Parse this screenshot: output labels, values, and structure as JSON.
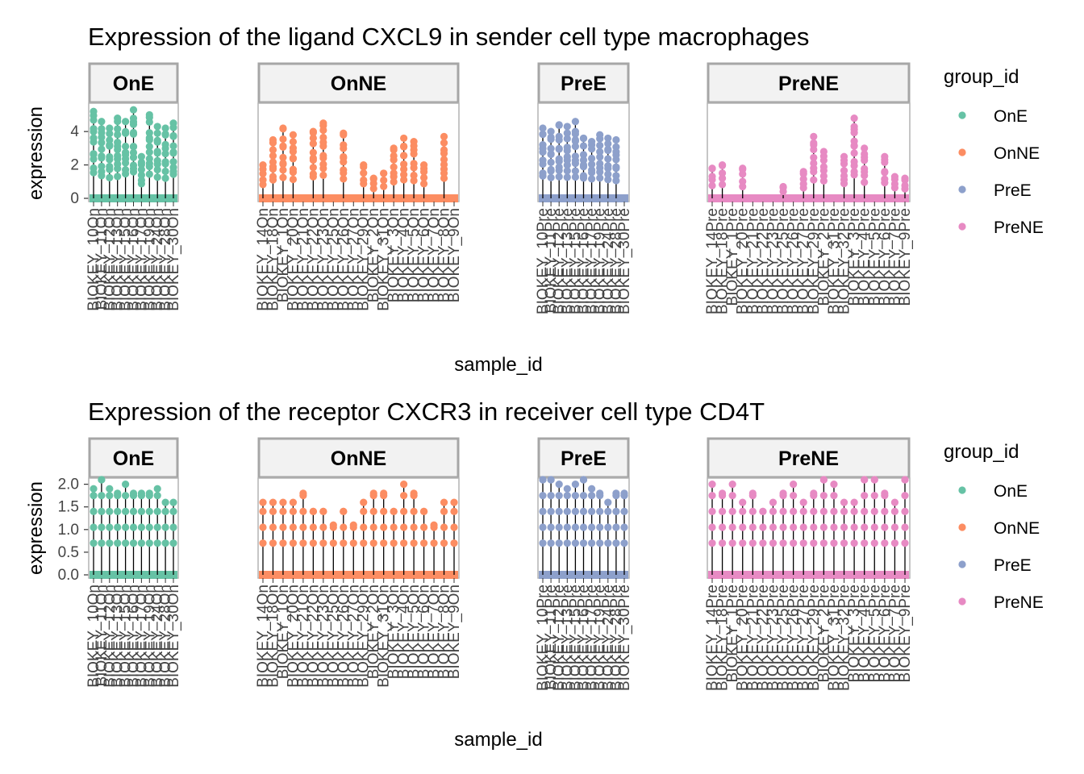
{
  "chart_data": [
    {
      "type": "scatter",
      "title": "Expression of the ligand CXCL9 in sender cell type macrophages",
      "xlabel": "sample_id",
      "ylabel": "expression",
      "ylim": [
        0,
        5.6
      ],
      "yticks": [
        0,
        2,
        4
      ],
      "yticklabels": [
        "0",
        "2",
        "4"
      ],
      "grid": false,
      "legend": {
        "title": "group_id",
        "placement": "right",
        "entries": [
          {
            "label": "OnE",
            "color": "#66C2A5"
          },
          {
            "label": "OnNE",
            "color": "#FC8D62"
          },
          {
            "label": "PreE",
            "color": "#8DA0CB"
          },
          {
            "label": "PreNE",
            "color": "#E78AC3"
          }
        ]
      },
      "facets": [
        {
          "label": "OnE",
          "color": "#66C2A5",
          "samples": [
            {
              "id": "BIOKEY_10On",
              "max": 5.2
            },
            {
              "id": "BIOKEY_11On",
              "max": 4.6
            },
            {
              "id": "BIOKEY_12On",
              "max": 4.2
            },
            {
              "id": "BIOKEY_13On",
              "max": 4.8
            },
            {
              "id": "BIOKEY_15On",
              "max": 4.6
            },
            {
              "id": "BIOKEY_16On",
              "max": 5.3
            },
            {
              "id": "BIOKEY_17On",
              "max": 2.5
            },
            {
              "id": "BIOKEY_19On",
              "max": 5.0
            },
            {
              "id": "BIOKEY_24On",
              "max": 4.3
            },
            {
              "id": "BIOKEY_28On",
              "max": 4.2
            },
            {
              "id": "BIOKEY_30On",
              "max": 4.5
            }
          ]
        },
        {
          "label": "OnNE",
          "color": "#FC8D62",
          "samples": [
            {
              "id": "BIOKEY_14On",
              "max": 2.0
            },
            {
              "id": "BIOKEY_18On",
              "max": 3.5
            },
            {
              "id": "BIOKEY_1On",
              "max": 4.2
            },
            {
              "id": "BIOKEY_20On",
              "max": 3.8
            },
            {
              "id": "BIOKEY_21On",
              "max": 0.0
            },
            {
              "id": "BIOKEY_22On",
              "max": 4.0
            },
            {
              "id": "BIOKEY_23On",
              "max": 4.5
            },
            {
              "id": "BIOKEY_25On",
              "max": 0.0
            },
            {
              "id": "BIOKEY_26On",
              "max": 3.9
            },
            {
              "id": "BIOKEY_27On",
              "max": 0.0
            },
            {
              "id": "BIOKEY_29On",
              "max": 2.0
            },
            {
              "id": "BIOKEY_2On",
              "max": 1.2
            },
            {
              "id": "BIOKEY_31On",
              "max": 1.5
            },
            {
              "id": "BIOKEY_3On",
              "max": 3.0
            },
            {
              "id": "BIOKEY_4On",
              "max": 3.6
            },
            {
              "id": "BIOKEY_5On",
              "max": 3.4
            },
            {
              "id": "BIOKEY_6On",
              "max": 2.0
            },
            {
              "id": "BIOKEY_7On",
              "max": 0.0
            },
            {
              "id": "BIOKEY_8On",
              "max": 3.7
            },
            {
              "id": "BIOKEY_9On",
              "max": 0.0
            }
          ]
        },
        {
          "label": "PreE",
          "color": "#8DA0CB",
          "samples": [
            {
              "id": "BIOKEY_10Pre",
              "max": 4.2
            },
            {
              "id": "BIOKEY_11Pre",
              "max": 4.0
            },
            {
              "id": "BIOKEY_12Pre",
              "max": 4.4
            },
            {
              "id": "BIOKEY_13Pre",
              "max": 4.3
            },
            {
              "id": "BIOKEY_15Pre",
              "max": 4.6
            },
            {
              "id": "BIOKEY_16Pre",
              "max": 3.6
            },
            {
              "id": "BIOKEY_17Pre",
              "max": 3.4
            },
            {
              "id": "BIOKEY_19Pre",
              "max": 3.8
            },
            {
              "id": "BIOKEY_24Pre",
              "max": 3.6
            },
            {
              "id": "BIOKEY_28Pre",
              "max": 3.5
            },
            {
              "id": "BIOKEY_30Pre",
              "max": 0.0
            }
          ]
        },
        {
          "label": "PreNE",
          "color": "#E78AC3",
          "samples": [
            {
              "id": "BIOKEY_14Pre",
              "max": 1.8
            },
            {
              "id": "BIOKEY_18Pre",
              "max": 2.0
            },
            {
              "id": "BIOKEY_1Pre",
              "max": 0.0
            },
            {
              "id": "BIOKEY_20Pre",
              "max": 1.8
            },
            {
              "id": "BIOKEY_21Pre",
              "max": 0.0
            },
            {
              "id": "BIOKEY_22Pre",
              "max": 0.0
            },
            {
              "id": "BIOKEY_23Pre",
              "max": 0.0
            },
            {
              "id": "BIOKEY_25Pre",
              "max": 0.7
            },
            {
              "id": "BIOKEY_26Pre",
              "max": 0.0
            },
            {
              "id": "BIOKEY_27Pre",
              "max": 1.6
            },
            {
              "id": "BIOKEY_29Pre",
              "max": 3.7
            },
            {
              "id": "BIOKEY_2Pre",
              "max": 2.8
            },
            {
              "id": "BIOKEY_31Pre",
              "max": 0.0
            },
            {
              "id": "BIOKEY_32Pre",
              "max": 2.5
            },
            {
              "id": "BIOKEY_3Pre",
              "max": 4.8
            },
            {
              "id": "BIOKEY_4Pre",
              "max": 3.0
            },
            {
              "id": "BIOKEY_5Pre",
              "max": 0.0
            },
            {
              "id": "BIOKEY_6Pre",
              "max": 2.5
            },
            {
              "id": "BIOKEY_7Pre",
              "max": 1.3
            },
            {
              "id": "BIOKEY_9Pre",
              "max": 1.2
            }
          ]
        }
      ]
    },
    {
      "type": "scatter",
      "title": "Expression of the receptor CXCR3 in receiver cell type CD4T",
      "xlabel": "sample_id",
      "ylabel": "expression",
      "ylim": [
        0,
        2.1
      ],
      "yticks": [
        0,
        0.5,
        1,
        1.5,
        2
      ],
      "yticklabels": [
        "0.0",
        "0.5",
        "1.0",
        "1.5",
        "2.0"
      ],
      "grid": false,
      "legend": {
        "title": "group_id",
        "placement": "right",
        "entries": [
          {
            "label": "OnE",
            "color": "#66C2A5"
          },
          {
            "label": "OnNE",
            "color": "#FC8D62"
          },
          {
            "label": "PreE",
            "color": "#8DA0CB"
          },
          {
            "label": "PreNE",
            "color": "#E78AC3"
          }
        ]
      },
      "facets": [
        {
          "label": "OnE",
          "color": "#66C2A5",
          "samples": [
            {
              "id": "BIOKEY_10On",
              "max": 1.9
            },
            {
              "id": "BIOKEY_11On",
              "max": 2.1
            },
            {
              "id": "BIOKEY_12On",
              "max": 1.9
            },
            {
              "id": "BIOKEY_13On",
              "max": 1.8
            },
            {
              "id": "BIOKEY_15On",
              "max": 2.0
            },
            {
              "id": "BIOKEY_16On",
              "max": 1.8
            },
            {
              "id": "BIOKEY_17On",
              "max": 1.8
            },
            {
              "id": "BIOKEY_19On",
              "max": 1.8
            },
            {
              "id": "BIOKEY_24On",
              "max": 1.9
            },
            {
              "id": "BIOKEY_28On",
              "max": 1.6
            },
            {
              "id": "BIOKEY_30On",
              "max": 1.6
            }
          ]
        },
        {
          "label": "OnNE",
          "color": "#FC8D62",
          "samples": [
            {
              "id": "BIOKEY_14On",
              "max": 1.6
            },
            {
              "id": "BIOKEY_18On",
              "max": 1.6
            },
            {
              "id": "BIOKEY_1On",
              "max": 1.6
            },
            {
              "id": "BIOKEY_20On",
              "max": 1.6
            },
            {
              "id": "BIOKEY_21On",
              "max": 1.8
            },
            {
              "id": "BIOKEY_22On",
              "max": 1.4
            },
            {
              "id": "BIOKEY_23On",
              "max": 1.4
            },
            {
              "id": "BIOKEY_25On",
              "max": 1.1
            },
            {
              "id": "BIOKEY_26On",
              "max": 1.4
            },
            {
              "id": "BIOKEY_27On",
              "max": 1.1
            },
            {
              "id": "BIOKEY_29On",
              "max": 1.6
            },
            {
              "id": "BIOKEY_2On",
              "max": 1.8
            },
            {
              "id": "BIOKEY_31On",
              "max": 1.8
            },
            {
              "id": "BIOKEY_3On",
              "max": 1.4
            },
            {
              "id": "BIOKEY_4On",
              "max": 2.0
            },
            {
              "id": "BIOKEY_5On",
              "max": 1.8
            },
            {
              "id": "BIOKEY_6On",
              "max": 1.4
            },
            {
              "id": "BIOKEY_7On",
              "max": 1.1
            },
            {
              "id": "BIOKEY_8On",
              "max": 1.6
            },
            {
              "id": "BIOKEY_9On",
              "max": 1.6
            }
          ]
        },
        {
          "label": "PreE",
          "color": "#8DA0CB",
          "samples": [
            {
              "id": "BIOKEY_10Pre",
              "max": 2.1
            },
            {
              "id": "BIOKEY_11Pre",
              "max": 2.1
            },
            {
              "id": "BIOKEY_12Pre",
              "max": 2.0
            },
            {
              "id": "BIOKEY_13Pre",
              "max": 1.9
            },
            {
              "id": "BIOKEY_15Pre",
              "max": 2.0
            },
            {
              "id": "BIOKEY_16Pre",
              "max": 2.1
            },
            {
              "id": "BIOKEY_17Pre",
              "max": 1.9
            },
            {
              "id": "BIOKEY_19Pre",
              "max": 1.8
            },
            {
              "id": "BIOKEY_24Pre",
              "max": 1.6
            },
            {
              "id": "BIOKEY_28Pre",
              "max": 1.8
            },
            {
              "id": "BIOKEY_30Pre",
              "max": 1.8
            }
          ]
        },
        {
          "label": "PreNE",
          "color": "#E78AC3",
          "samples": [
            {
              "id": "BIOKEY_14Pre",
              "max": 2.0
            },
            {
              "id": "BIOKEY_18Pre",
              "max": 1.8
            },
            {
              "id": "BIOKEY_1Pre",
              "max": 2.0
            },
            {
              "id": "BIOKEY_20Pre",
              "max": 1.6
            },
            {
              "id": "BIOKEY_21Pre",
              "max": 1.8
            },
            {
              "id": "BIOKEY_22Pre",
              "max": 1.4
            },
            {
              "id": "BIOKEY_23Pre",
              "max": 1.6
            },
            {
              "id": "BIOKEY_25Pre",
              "max": 1.8
            },
            {
              "id": "BIOKEY_26Pre",
              "max": 2.0
            },
            {
              "id": "BIOKEY_27Pre",
              "max": 1.6
            },
            {
              "id": "BIOKEY_29Pre",
              "max": 1.8
            },
            {
              "id": "BIOKEY_2Pre",
              "max": 2.1
            },
            {
              "id": "BIOKEY_31Pre",
              "max": 2.0
            },
            {
              "id": "BIOKEY_32Pre",
              "max": 1.6
            },
            {
              "id": "BIOKEY_3Pre",
              "max": 1.6
            },
            {
              "id": "BIOKEY_4Pre",
              "max": 2.1
            },
            {
              "id": "BIOKEY_5Pre",
              "max": 2.1
            },
            {
              "id": "BIOKEY_6Pre",
              "max": 1.8
            },
            {
              "id": "BIOKEY_7Pre",
              "max": 1.6
            },
            {
              "id": "BIOKEY_9Pre",
              "max": 2.1
            }
          ]
        }
      ]
    }
  ]
}
